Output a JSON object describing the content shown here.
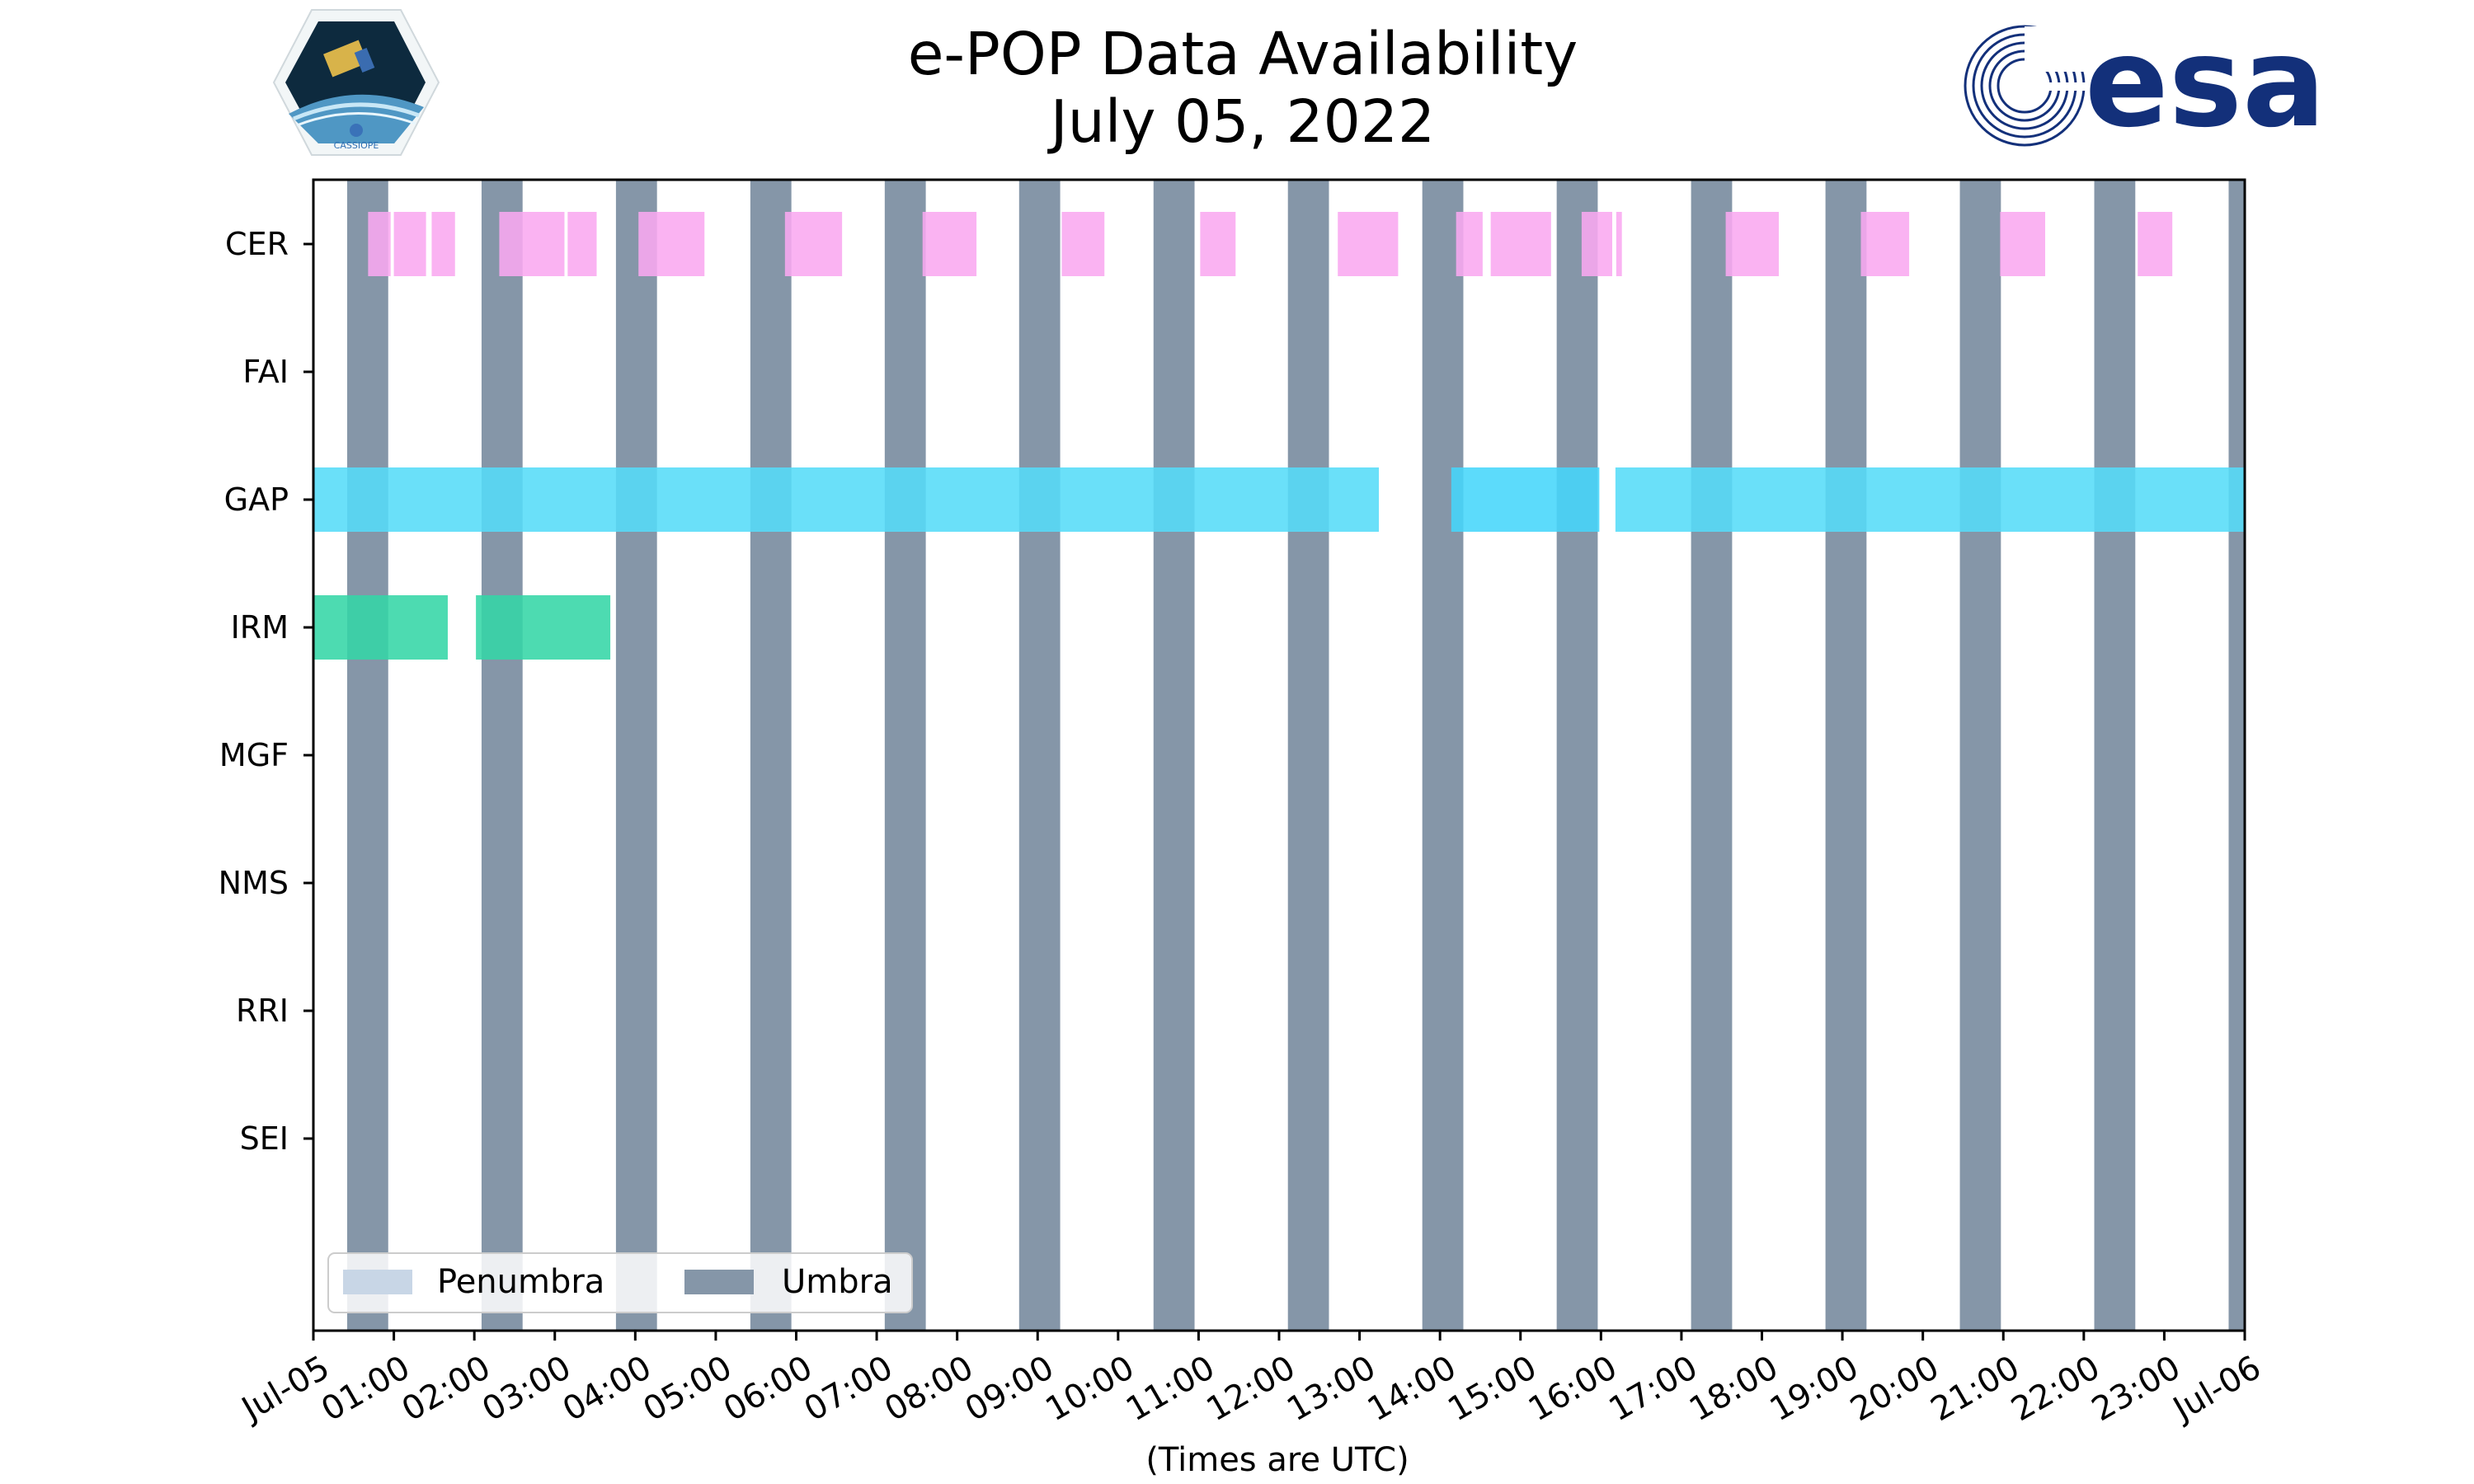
{
  "header": {
    "title_line1": "e-POP Data Availability",
    "title_line2": "July 05, 2022",
    "logo_left_word": "CASSIOPE",
    "logo_right_word": "esa"
  },
  "colors": {
    "umbra": "#8596a8",
    "penumbra": "#c8d6e6",
    "CER": "#f9a8f0",
    "GAP": "#55dcf8",
    "GAP_highlight": "#45d6fa",
    "IRM": "#34d6a6",
    "esa_blue": "#13307a"
  },
  "chart_data": {
    "type": "timeline",
    "title": "e-POP Data Availability July 05, 2022",
    "xlabel": "(Times are UTC)",
    "ylabel": "",
    "x_unit": "hours UTC",
    "xlim": [
      0,
      24
    ],
    "x_tick_values": [
      0,
      1,
      2,
      3,
      4,
      5,
      6,
      7,
      8,
      9,
      10,
      11,
      12,
      13,
      14,
      15,
      16,
      17,
      18,
      19,
      20,
      21,
      22,
      23,
      24
    ],
    "x_tick_labels": [
      "Jul-05",
      "01:00",
      "02:00",
      "03:00",
      "04:00",
      "05:00",
      "06:00",
      "07:00",
      "08:00",
      "09:00",
      "10:00",
      "11:00",
      "12:00",
      "13:00",
      "14:00",
      "15:00",
      "16:00",
      "17:00",
      "18:00",
      "19:00",
      "20:00",
      "21:00",
      "22:00",
      "23:00",
      "Jul-06"
    ],
    "instruments": [
      "CER",
      "FAI",
      "GAP",
      "IRM",
      "MGF",
      "NMS",
      "RRI",
      "SEI"
    ],
    "umbra_intervals": [
      [
        0.42,
        0.93
      ],
      [
        2.09,
        2.6
      ],
      [
        3.76,
        4.27
      ],
      [
        5.43,
        5.94
      ],
      [
        7.1,
        7.61
      ],
      [
        8.77,
        9.28
      ],
      [
        10.44,
        10.95
      ],
      [
        12.11,
        12.62
      ],
      [
        13.78,
        14.29
      ],
      [
        15.45,
        15.96
      ],
      [
        17.12,
        17.63
      ],
      [
        18.79,
        19.3
      ],
      [
        20.46,
        20.97
      ],
      [
        22.13,
        22.64
      ],
      [
        23.8,
        24.0
      ]
    ],
    "penumbra_intervals": [],
    "series": [
      {
        "name": "CER",
        "intervals": [
          [
            0.68,
            0.96
          ],
          [
            1.0,
            1.4
          ],
          [
            1.47,
            1.76
          ],
          [
            2.31,
            3.12
          ],
          [
            3.16,
            3.52
          ],
          [
            4.04,
            4.86
          ],
          [
            5.86,
            6.57
          ],
          [
            7.57,
            8.24
          ],
          [
            9.3,
            9.83
          ],
          [
            11.02,
            11.46
          ],
          [
            12.73,
            13.48
          ],
          [
            14.2,
            14.53
          ],
          [
            14.63,
            15.38
          ],
          [
            15.76,
            16.14
          ],
          [
            16.19,
            16.26
          ],
          [
            17.55,
            18.21
          ],
          [
            19.23,
            19.83
          ],
          [
            20.96,
            21.52
          ],
          [
            22.67,
            23.1
          ]
        ]
      },
      {
        "name": "FAI",
        "intervals": []
      },
      {
        "name": "GAP",
        "intervals": [
          [
            0.0,
            13.24
          ],
          [
            14.14,
            15.98
          ],
          [
            16.18,
            24.0
          ]
        ]
      },
      {
        "name": "IRM",
        "intervals": [
          [
            0.0,
            1.67
          ],
          [
            2.02,
            3.69
          ]
        ]
      },
      {
        "name": "MGF",
        "intervals": []
      },
      {
        "name": "NMS",
        "intervals": []
      },
      {
        "name": "RRI",
        "intervals": []
      },
      {
        "name": "SEI",
        "intervals": []
      }
    ],
    "legend": {
      "placement": "lower-left",
      "entries": [
        {
          "label": "Penumbra",
          "color": "#c8d6e6"
        },
        {
          "label": "Umbra",
          "color": "#8596a8"
        }
      ]
    }
  }
}
